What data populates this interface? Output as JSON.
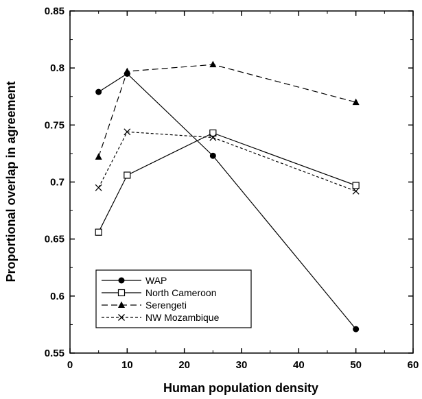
{
  "chart_data": {
    "type": "line",
    "title": "",
    "xlabel": "Human population density",
    "ylabel": "Proportional overlap in agreement",
    "xlim": [
      0,
      60
    ],
    "ylim": [
      0.55,
      0.85
    ],
    "x_ticks": [
      "0",
      "10",
      "20",
      "30",
      "40",
      "50",
      "60"
    ],
    "y_ticks": [
      "0.55",
      "0.6",
      "0.65",
      "0.7",
      "0.75",
      "0.8",
      "0.85"
    ],
    "grid": false,
    "legend_position": "bottom-left",
    "x": [
      5,
      10,
      25,
      50
    ],
    "series": [
      {
        "name": "WAP",
        "values": [
          0.779,
          0.795,
          0.723,
          0.571
        ],
        "marker": "filled-circle",
        "line": "solid"
      },
      {
        "name": "North Cameroon",
        "values": [
          0.656,
          0.706,
          0.743,
          0.697
        ],
        "marker": "open-square",
        "line": "solid"
      },
      {
        "name": "Serengeti",
        "values": [
          0.722,
          0.797,
          0.803,
          0.77
        ],
        "marker": "filled-triangle",
        "line": "long-dash"
      },
      {
        "name": "NW Mozambique",
        "values": [
          0.695,
          0.744,
          0.739,
          0.692
        ],
        "marker": "x-cross",
        "line": "short-dash"
      }
    ]
  }
}
